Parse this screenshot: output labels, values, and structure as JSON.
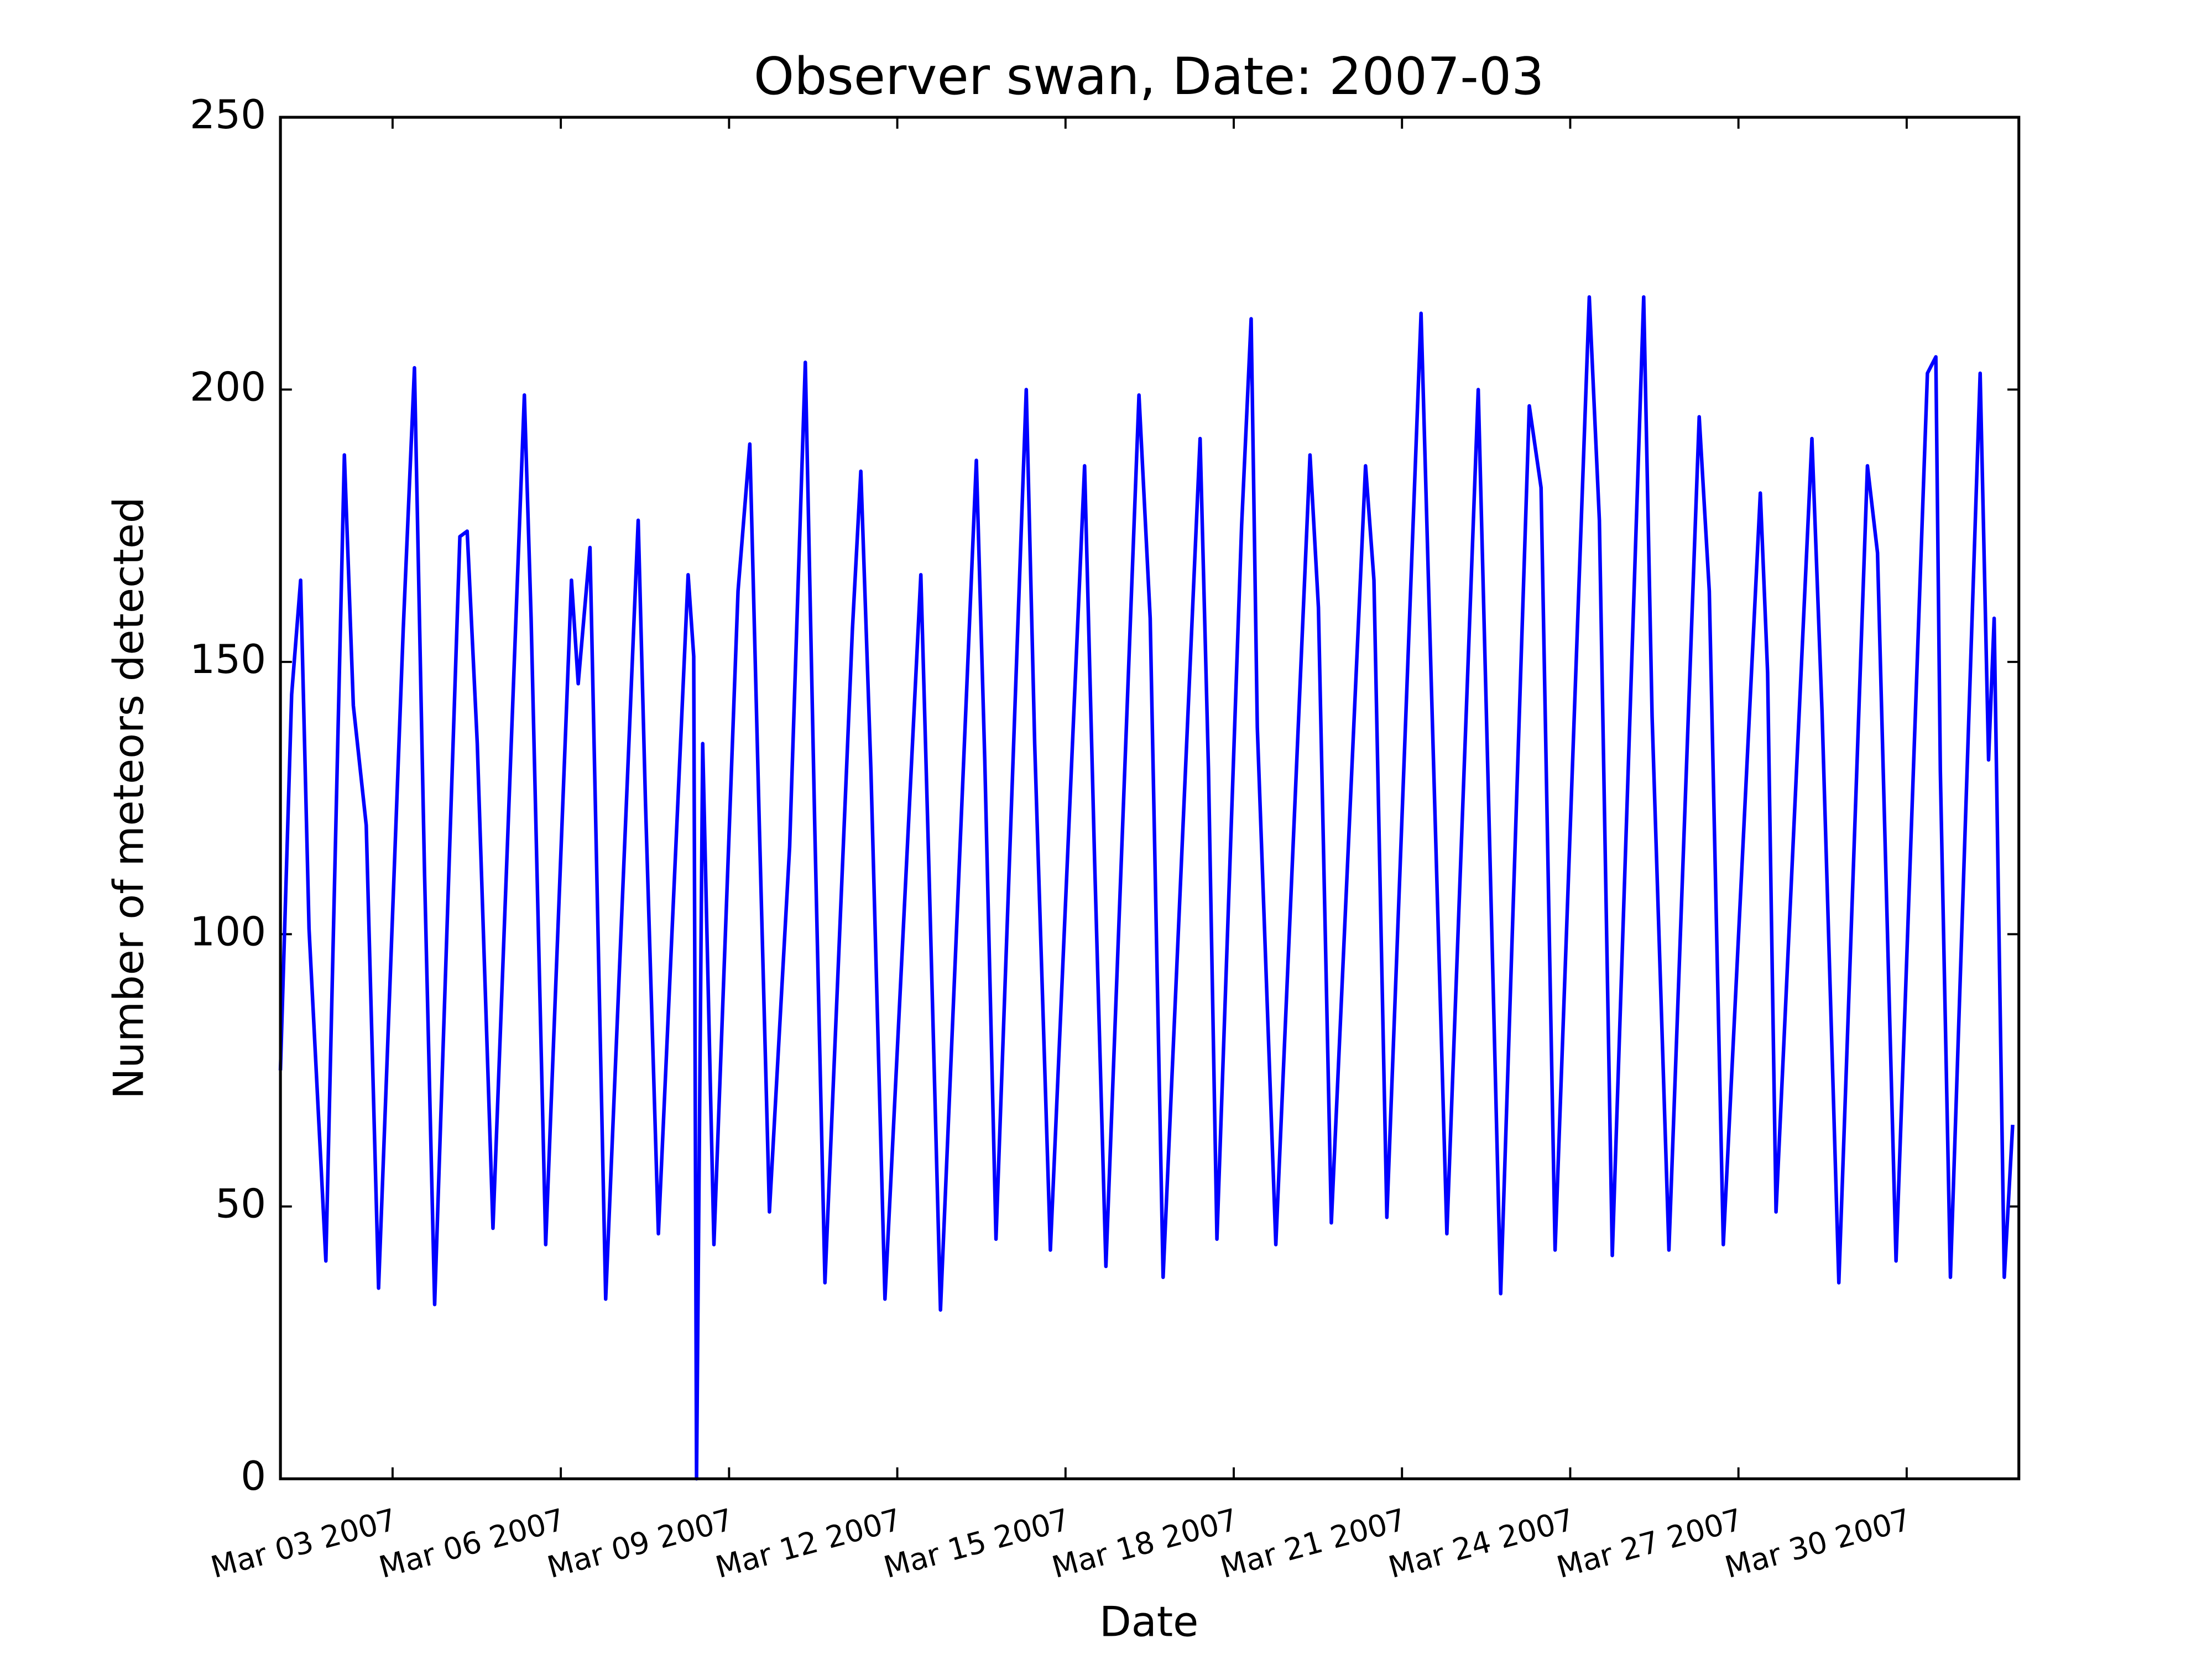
{
  "chart_data": {
    "type": "line",
    "title": "Observer swan, Date: 2007-03",
    "xlabel": "Date",
    "ylabel": "Number of meteors detected",
    "x": [
      1.0,
      1.2,
      1.36,
      1.51,
      1.81,
      2.14,
      2.3,
      2.53,
      2.75,
      3.19,
      3.39,
      3.57,
      3.75,
      4.2,
      4.33,
      4.51,
      4.79,
      5.35,
      5.47,
      5.73,
      6.19,
      6.31,
      6.52,
      6.8,
      7.38,
      7.51,
      7.74,
      8.27,
      8.37,
      8.42,
      8.53,
      8.73,
      9.16,
      9.37,
      9.54,
      9.72,
      10.08,
      10.36,
      10.53,
      10.71,
      11.2,
      11.35,
      11.53,
      11.78,
      12.42,
      12.57,
      12.77,
      13.41,
      13.56,
      13.76,
      14.3,
      14.45,
      14.73,
      15.34,
      15.52,
      15.72,
      16.31,
      16.51,
      16.74,
      17.4,
      17.55,
      17.7,
      18.14,
      18.31,
      18.42,
      18.75,
      19.36,
      19.51,
      19.74,
      20.35,
      20.5,
      20.73,
      21.34,
      21.52,
      21.8,
      22.36,
      22.56,
      22.76,
      23.27,
      23.48,
      23.73,
      24.34,
      24.52,
      24.75,
      25.31,
      25.46,
      25.76,
      26.3,
      26.48,
      26.73,
      27.39,
      27.52,
      27.67,
      28.31,
      28.49,
      28.79,
      29.3,
      29.48,
      29.81,
      30.37,
      30.52,
      30.6,
      30.78,
      31.31,
      31.46,
      31.56,
      31.74,
      31.89
    ],
    "series": [
      {
        "name": "swan",
        "color": "#0000ff",
        "values": [
          75,
          144,
          165,
          101,
          40,
          188,
          142,
          120,
          35,
          156,
          204,
          111,
          32,
          173,
          174,
          135,
          46,
          199,
          158,
          43,
          165,
          146,
          171,
          33,
          176,
          124,
          45,
          166,
          151,
          0,
          135,
          43,
          163,
          190,
          120,
          49,
          116,
          205,
          119,
          36,
          156,
          185,
          130,
          33,
          166,
          110,
          31,
          187,
          132,
          44,
          200,
          135,
          42,
          186,
          113,
          39,
          199,
          158,
          37,
          191,
          130,
          44,
          175,
          213,
          138,
          43,
          188,
          160,
          47,
          186,
          165,
          48,
          214,
          147,
          45,
          200,
          118,
          34,
          197,
          182,
          42,
          217,
          176,
          41,
          217,
          140,
          42,
          195,
          163,
          43,
          181,
          148,
          49,
          191,
          141,
          36,
          186,
          170,
          40,
          203,
          206,
          130,
          37,
          203,
          132,
          158,
          37,
          65
        ]
      }
    ],
    "xlim": [
      1,
      32
    ],
    "xticks": [
      {
        "value": 3,
        "label": "Mar 03 2007"
      },
      {
        "value": 6,
        "label": "Mar 06 2007"
      },
      {
        "value": 9,
        "label": "Mar 09 2007"
      },
      {
        "value": 12,
        "label": "Mar 12 2007"
      },
      {
        "value": 15,
        "label": "Mar 15 2007"
      },
      {
        "value": 18,
        "label": "Mar 18 2007"
      },
      {
        "value": 21,
        "label": "Mar 21 2007"
      },
      {
        "value": 24,
        "label": "Mar 24 2007"
      },
      {
        "value": 27,
        "label": "Mar 27 2007"
      },
      {
        "value": 30,
        "label": "Mar 30 2007"
      }
    ],
    "ylim": [
      0,
      250
    ],
    "yticks": [
      0,
      50,
      100,
      150,
      200,
      250
    ]
  }
}
